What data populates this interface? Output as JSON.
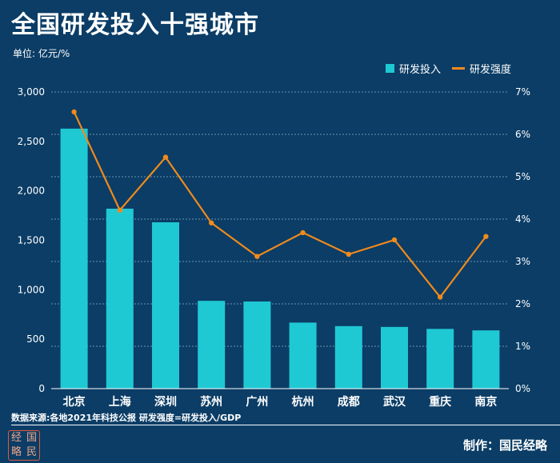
{
  "header": {
    "title": "全国研发投入十强城市",
    "unit": "单位: 亿元/%"
  },
  "legend": {
    "bar_label": "研发投入",
    "line_label": "研发强度"
  },
  "footer": {
    "source": "数据来源:各地2021年科技公报  研发强度=研发投入/GDP",
    "credit": "制作：国民经略",
    "logo_chars": [
      "经",
      "国",
      "略",
      "民"
    ]
  },
  "colors": {
    "background": "#0b3d66",
    "bar": "#1fc9d4",
    "line": "#f08a1c"
  },
  "chart_data": {
    "type": "bar",
    "title": "全国研发投入十强城市",
    "categories": [
      "北京",
      "上海",
      "深圳",
      "苏州",
      "广州",
      "杭州",
      "成都",
      "武汉",
      "重庆",
      "南京"
    ],
    "series": [
      {
        "name": "研发投入",
        "type": "bar",
        "axis": "left",
        "values": [
          2629,
          1820,
          1682,
          888,
          881,
          668,
          632,
          624,
          604,
          589
        ]
      },
      {
        "name": "研发强度",
        "type": "line",
        "axis": "right",
        "values": [
          6.53,
          4.21,
          5.46,
          3.91,
          3.12,
          3.68,
          3.17,
          3.51,
          2.16,
          3.59
        ]
      }
    ],
    "left_axis": {
      "min": 0,
      "max": 3000,
      "ticks": [
        0,
        500,
        1000,
        1500,
        2000,
        2500,
        3000
      ],
      "tick_labels": [
        "0",
        "500",
        "1,000",
        "1,500",
        "2,000",
        "2,500",
        "3,000"
      ]
    },
    "right_axis": {
      "min": 0,
      "max": 7,
      "ticks": [
        0,
        1,
        2,
        3,
        4,
        5,
        6,
        7
      ],
      "tick_labels": [
        "0%",
        "1%",
        "2%",
        "3%",
        "4%",
        "5%",
        "6%",
        "7%"
      ]
    },
    "grid": true,
    "legend_position": "top-right"
  }
}
